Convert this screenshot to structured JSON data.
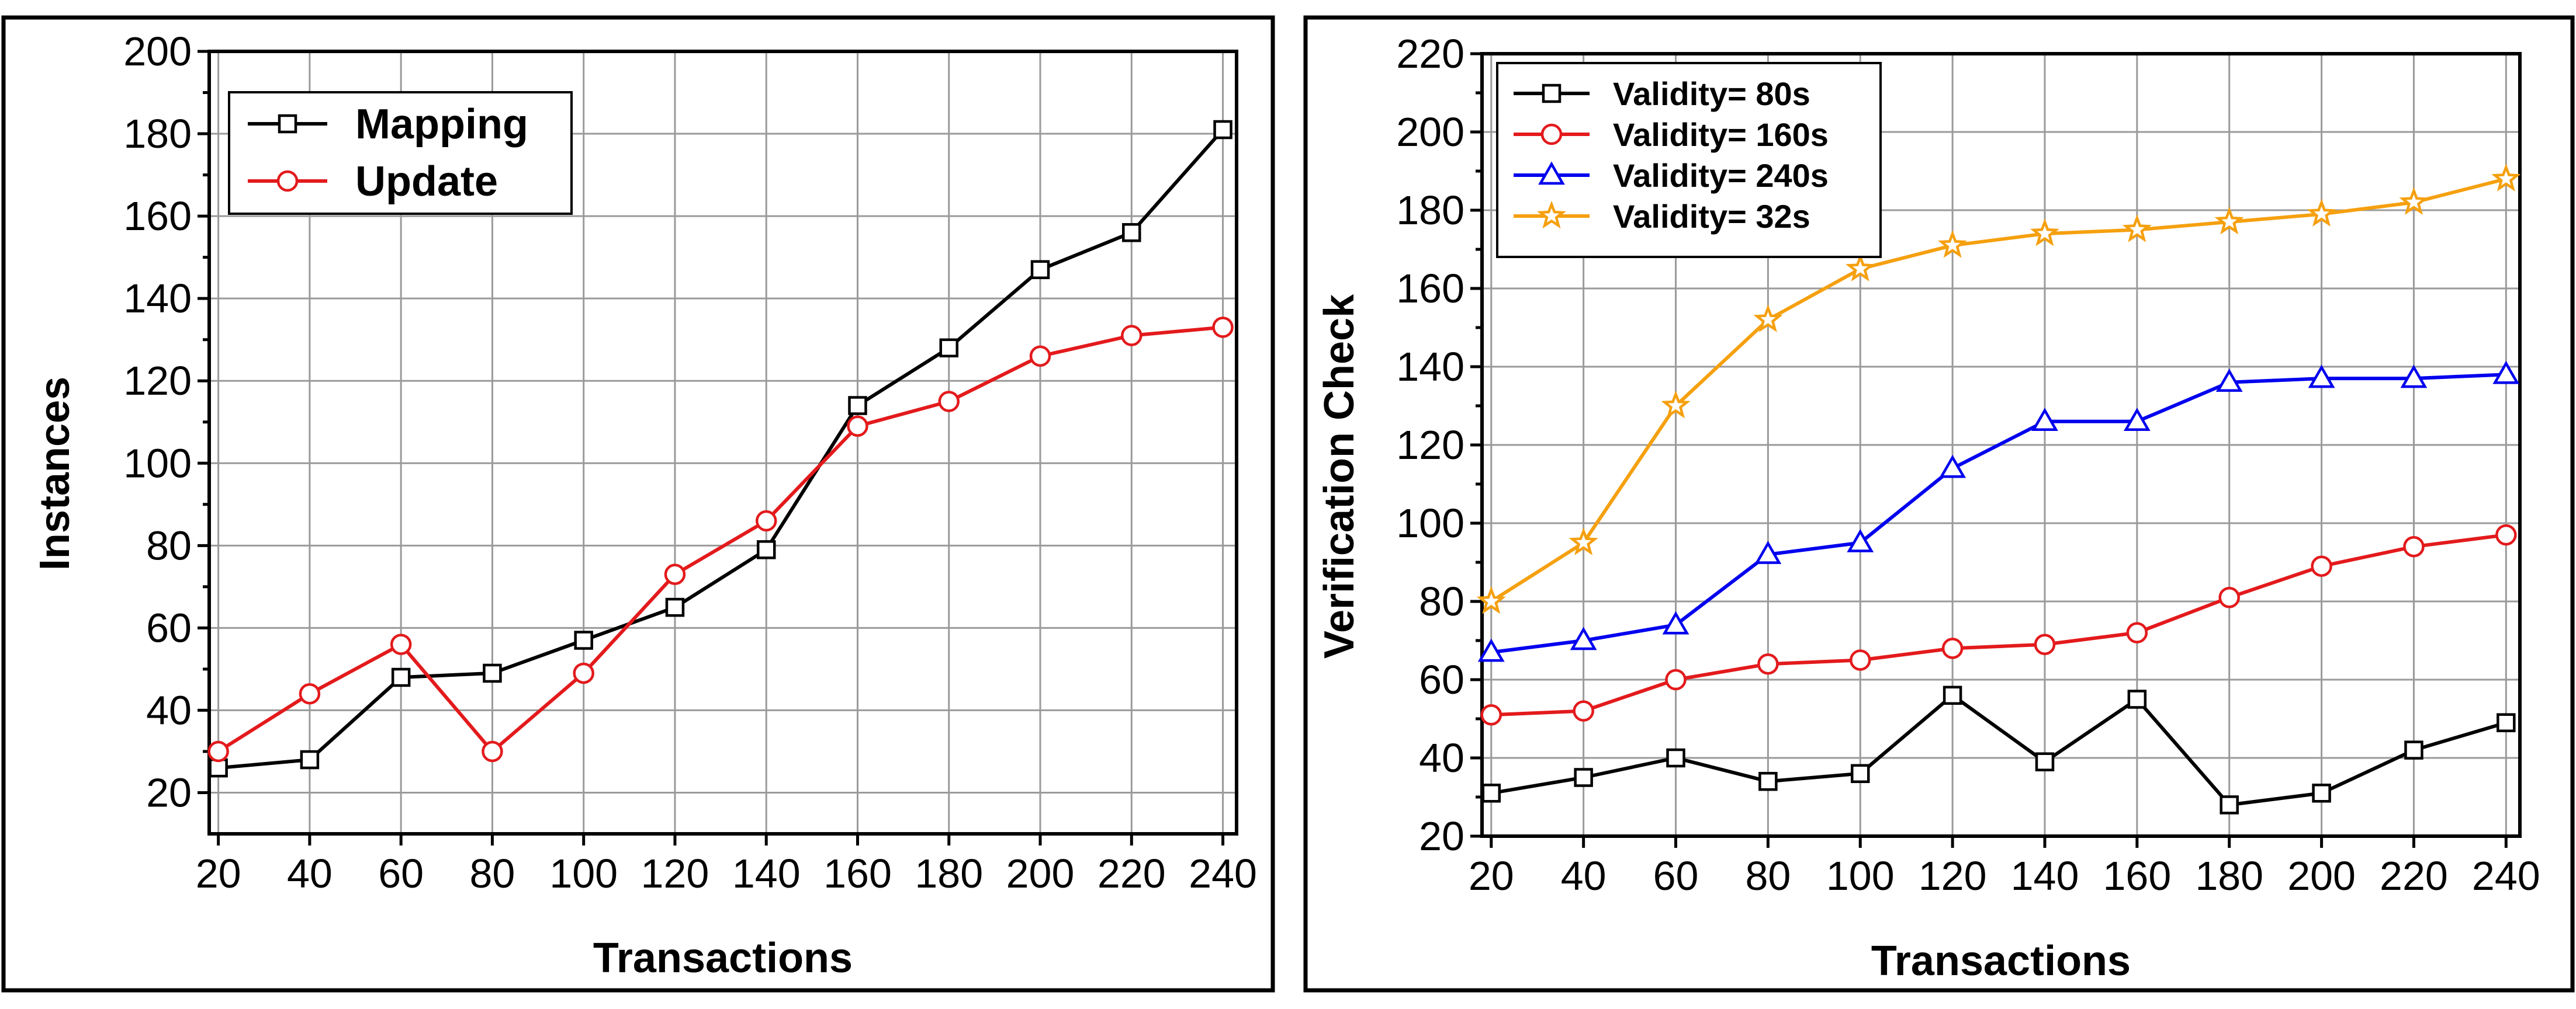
{
  "chart_data": [
    {
      "type": "line",
      "title": "",
      "xlabel": "Transactions",
      "ylabel": "Instances",
      "x": [
        20,
        40,
        60,
        80,
        100,
        120,
        140,
        160,
        180,
        200,
        220,
        240
      ],
      "xlim": [
        18,
        243
      ],
      "ylim": [
        10,
        200
      ],
      "yticks": [
        20,
        40,
        60,
        80,
        100,
        120,
        140,
        160,
        180,
        200
      ],
      "xtick_labels": [
        "20",
        "40",
        "60",
        "80",
        "100",
        "120",
        "140",
        "160",
        "180",
        "200",
        "220",
        "240"
      ],
      "ytick_labels": [
        "20",
        "40",
        "60",
        "80",
        "100",
        "120",
        "140",
        "160",
        "180",
        "200"
      ],
      "grid": true,
      "legend_position": "top-left",
      "series": [
        {
          "name": "Mapping",
          "color": "#000000",
          "marker": "square",
          "values": [
            26,
            28,
            48,
            49,
            57,
            65,
            79,
            114,
            128,
            147,
            156,
            181
          ]
        },
        {
          "name": "Update",
          "color": "#e31a1c",
          "marker": "circle",
          "values": [
            30,
            44,
            56,
            30,
            49,
            73,
            86,
            109,
            115,
            126,
            131,
            133
          ]
        }
      ]
    },
    {
      "type": "line",
      "title": "",
      "xlabel": "Transactions",
      "ylabel": "Verification Check",
      "x": [
        20,
        40,
        60,
        80,
        100,
        120,
        140,
        160,
        180,
        200,
        220,
        240
      ],
      "xlim": [
        18,
        243
      ],
      "ylim": [
        20,
        220
      ],
      "yticks": [
        20,
        40,
        60,
        80,
        100,
        120,
        140,
        160,
        180,
        200,
        220
      ],
      "xtick_labels": [
        "20",
        "40",
        "60",
        "80",
        "100",
        "120",
        "140",
        "160",
        "180",
        "200",
        "220",
        "240"
      ],
      "ytick_labels": [
        "20",
        "40",
        "60",
        "80",
        "100",
        "120",
        "140",
        "160",
        "180",
        "200",
        "220"
      ],
      "grid": true,
      "legend_position": "top-left",
      "series": [
        {
          "name": "Validity= 80s",
          "color": "#000000",
          "marker": "square",
          "values": [
            31,
            35,
            40,
            34,
            36,
            56,
            39,
            55,
            28,
            31,
            42,
            49
          ]
        },
        {
          "name": "Validity= 160s",
          "color": "#e31a1c",
          "marker": "circle",
          "values": [
            51,
            52,
            60,
            64,
            65,
            68,
            69,
            72,
            81,
            89,
            94,
            97
          ]
        },
        {
          "name": "Validity= 240s",
          "color": "#0000ee",
          "marker": "triangle",
          "values": [
            67,
            70,
            74,
            92,
            95,
            114,
            126,
            126,
            136,
            137,
            137,
            138
          ]
        },
        {
          "name": "Validity= 32s",
          "color": "#f5a00f",
          "marker": "star",
          "values": [
            80,
            95,
            130,
            152,
            165,
            171,
            174,
            175,
            177,
            179,
            182,
            188
          ]
        }
      ]
    }
  ]
}
